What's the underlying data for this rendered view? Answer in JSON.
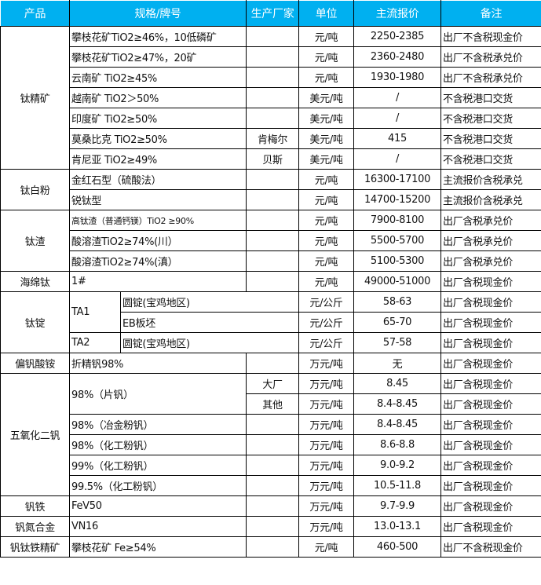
{
  "colors": {
    "header_bg": "#00B0F0",
    "header_text": "#FFFFFF",
    "border": "#000000"
  },
  "headers": [
    "产品",
    "规格/牌号",
    "生产厂家",
    "单位",
    "主流报价",
    "备注"
  ],
  "groups": [
    {
      "product": "钛精矿",
      "rows": [
        {
          "spec": "攀枝花矿TiO2≥46%，10低磷矿",
          "maker": "",
          "unit": "元/吨",
          "price": "2250-2385",
          "note": "出厂不含税现金价"
        },
        {
          "spec": "攀枝花矿TiO2≥47%，20矿",
          "maker": "",
          "unit": "元/吨",
          "price": "2360-2480",
          "note": "出厂不含税承兑价"
        },
        {
          "spec": "云南矿 TiO2≥45%",
          "maker": "",
          "unit": "元/吨",
          "price": "1930-1980",
          "note": "出厂不含税承兑价"
        },
        {
          "spec": "越南矿 TiO2＞50%",
          "maker": "",
          "unit": "美元/吨",
          "price": "/",
          "note": "不含税港口交货"
        },
        {
          "spec": "印度矿 TiO2≥50%",
          "maker": "",
          "unit": "美元/吨",
          "price": "/",
          "note": "不含税港口交货"
        },
        {
          "spec": "莫桑比克 TiO2≥50%",
          "maker": "肯梅尔",
          "unit": "美元/吨",
          "price": "415",
          "note": "不含税港口交货"
        },
        {
          "spec": "肯尼亚 TiO2≥49%",
          "maker": "贝斯",
          "unit": "美元/吨",
          "price": "/",
          "note": "不含税港口交货"
        }
      ]
    },
    {
      "product": "钛白粉",
      "rows": [
        {
          "spec": "金红石型（硫酸法）",
          "maker": "",
          "unit": "元/吨",
          "price": "16300-17100",
          "note": "主流报价含税承兑"
        },
        {
          "spec": "锐钛型",
          "maker": "",
          "unit": "元/吨",
          "price": "14700-15200",
          "note": "主流报价含税承兑"
        }
      ]
    },
    {
      "product": "钛渣",
      "rows": [
        {
          "spec": "高钛渣（普通钙镁）TiO2 ≥90%",
          "small": true,
          "maker": "",
          "unit": "元/吨",
          "price": "7900-8100",
          "note": "出厂含税承兑价"
        },
        {
          "spec": "酸溶渣TiO2≥74%(川）",
          "maker": "",
          "unit": "元/吨",
          "price": "5500-5700",
          "note": "出厂含税承兑价"
        },
        {
          "spec": "酸溶渣TiO2≥74%(滇）",
          "maker": "",
          "unit": "元/吨",
          "price": "5100-5300",
          "note": "出厂含税承兑价"
        }
      ]
    },
    {
      "product": "海绵钛",
      "rows": [
        {
          "spec": "1#",
          "maker": "",
          "unit": "元/吨",
          "price": "49000-51000",
          "note": "出厂含税现金价"
        }
      ]
    },
    {
      "product": "钛锭",
      "rows": [
        {
          "spec": "TA1",
          "sub": "圆锭(宝鸡地区)",
          "unit": "元/公斤",
          "price": "58-63",
          "note": "出厂含税现金价"
        },
        {
          "spec": null,
          "sub": "EB板坯",
          "unit": "元/公斤",
          "price": "65-70",
          "note": "出厂含税现金价"
        },
        {
          "spec": "TA2",
          "sub": "圆锭(宝鸡地区)",
          "unit": "元/公斤",
          "price": "57-58",
          "note": "出厂含税现金价"
        }
      ]
    },
    {
      "product": "偏钒酸铵",
      "rows": [
        {
          "spec": "折精钒98%",
          "maker": "",
          "unit": "万元/吨",
          "price": "无",
          "note": "出厂含税现金价"
        }
      ]
    },
    {
      "product": "五氧化二钒",
      "rows": [
        {
          "spec": "98%（片钒）",
          "maker": "大厂",
          "unit": "万元/吨",
          "price": "8.45",
          "note": "出厂含税现金价"
        },
        {
          "spec": null,
          "maker": "其他",
          "unit": "万元/吨",
          "price": "8.4-8.45",
          "note": "出厂含税现金价"
        },
        {
          "spec": "98%（冶金粉钒）",
          "maker": "",
          "unit": "万元/吨",
          "price": "8.4-8.45",
          "note": "出厂含税现金价"
        },
        {
          "spec": "98%（化工粉钒）",
          "maker": "",
          "unit": "万元/吨",
          "price": "8.6-8.8",
          "note": "出厂含税现金价"
        },
        {
          "spec": "99%（化工粉钒）",
          "maker": "",
          "unit": "万元/吨",
          "price": "9.0-9.2",
          "note": "出厂含税现金价"
        },
        {
          "spec": "99.5%（化工粉钒）",
          "maker": "",
          "unit": "万元/吨",
          "price": "10.5-11.8",
          "note": "出厂含税现金价"
        }
      ]
    },
    {
      "product": "钒铁",
      "rows": [
        {
          "spec": "FeV50",
          "maker": "",
          "unit": "万元/吨",
          "price": "9.7-9.9",
          "note": "出厂含税现金价"
        }
      ]
    },
    {
      "product": "钒氮合金",
      "rows": [
        {
          "spec": "VN16",
          "maker": "",
          "unit": "万元/吨",
          "price": "13.0-13.1",
          "note": "出厂含税现金价"
        }
      ]
    },
    {
      "product": "钒钛铁精矿",
      "rows": [
        {
          "spec": "攀枝花矿 Fe≥54%",
          "maker": "",
          "unit": "元/吨",
          "price": "460-500",
          "note": "出厂不含税现金价"
        }
      ]
    }
  ]
}
